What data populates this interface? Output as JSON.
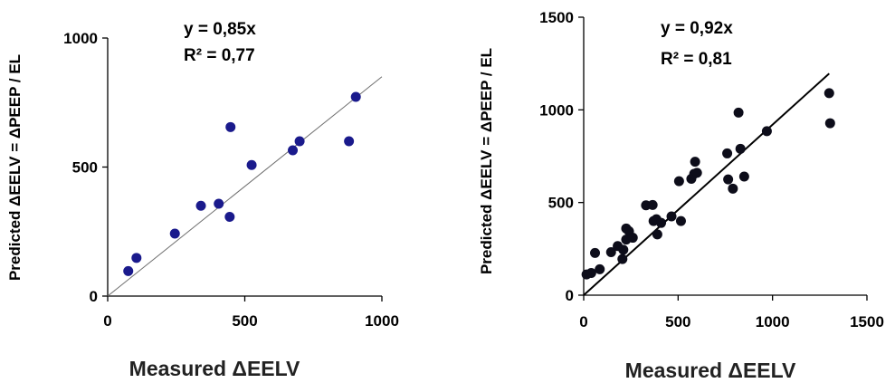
{
  "chart_data": [
    {
      "type": "scatter",
      "xlabel": "Measured ΔEELV",
      "ylabel": "Predicted ΔEELV = ΔPEEP / EL",
      "xlim": [
        0,
        1000
      ],
      "ylim": [
        0,
        1000
      ],
      "xticks": [
        "0",
        "500",
        "1000"
      ],
      "yticks": [
        "0",
        "500",
        "1000"
      ],
      "annotations": [
        "y = 0,85x",
        "R² = 0,77"
      ],
      "trendline": {
        "slope": 0.85,
        "x": [
          0,
          1000
        ]
      },
      "marker_color": "#1a1a8c",
      "line_color": "#6f6f6f",
      "points": [
        {
          "x": 75,
          "y": 97
        },
        {
          "x": 105,
          "y": 148
        },
        {
          "x": 245,
          "y": 242
        },
        {
          "x": 340,
          "y": 350
        },
        {
          "x": 405,
          "y": 358
        },
        {
          "x": 445,
          "y": 307
        },
        {
          "x": 448,
          "y": 655
        },
        {
          "x": 525,
          "y": 508
        },
        {
          "x": 675,
          "y": 565
        },
        {
          "x": 700,
          "y": 600
        },
        {
          "x": 880,
          "y": 600
        },
        {
          "x": 905,
          "y": 772
        }
      ]
    },
    {
      "type": "scatter",
      "xlabel": "Measured ΔEELV",
      "ylabel": "Predicted ΔEELV = ΔPEEP / EL",
      "xlim": [
        0,
        1500
      ],
      "ylim": [
        0,
        1500
      ],
      "xticks": [
        "0",
        "500",
        "1000",
        "1500"
      ],
      "yticks": [
        "0",
        "500",
        "1000",
        "1500"
      ],
      "annotations": [
        "y = 0,92x",
        "R² = 0,81"
      ],
      "trendline": {
        "slope": 0.92,
        "x": [
          0,
          1300
        ]
      },
      "marker_color": "#0d0d1a",
      "line_color": "#000000",
      "points": [
        {
          "x": 15,
          "y": 112
        },
        {
          "x": 40,
          "y": 120
        },
        {
          "x": 60,
          "y": 228
        },
        {
          "x": 85,
          "y": 140
        },
        {
          "x": 145,
          "y": 232
        },
        {
          "x": 180,
          "y": 265
        },
        {
          "x": 205,
          "y": 195
        },
        {
          "x": 210,
          "y": 245
        },
        {
          "x": 225,
          "y": 300
        },
        {
          "x": 225,
          "y": 360
        },
        {
          "x": 240,
          "y": 345
        },
        {
          "x": 260,
          "y": 310
        },
        {
          "x": 330,
          "y": 485
        },
        {
          "x": 365,
          "y": 487
        },
        {
          "x": 370,
          "y": 400
        },
        {
          "x": 385,
          "y": 410
        },
        {
          "x": 390,
          "y": 328
        },
        {
          "x": 410,
          "y": 390
        },
        {
          "x": 465,
          "y": 425
        },
        {
          "x": 505,
          "y": 615
        },
        {
          "x": 515,
          "y": 400
        },
        {
          "x": 570,
          "y": 628
        },
        {
          "x": 585,
          "y": 655
        },
        {
          "x": 590,
          "y": 720
        },
        {
          "x": 600,
          "y": 660
        },
        {
          "x": 760,
          "y": 765
        },
        {
          "x": 765,
          "y": 625
        },
        {
          "x": 790,
          "y": 575
        },
        {
          "x": 820,
          "y": 985
        },
        {
          "x": 830,
          "y": 790
        },
        {
          "x": 850,
          "y": 640
        },
        {
          "x": 970,
          "y": 885
        },
        {
          "x": 1300,
          "y": 1090
        },
        {
          "x": 1305,
          "y": 928
        }
      ]
    }
  ]
}
